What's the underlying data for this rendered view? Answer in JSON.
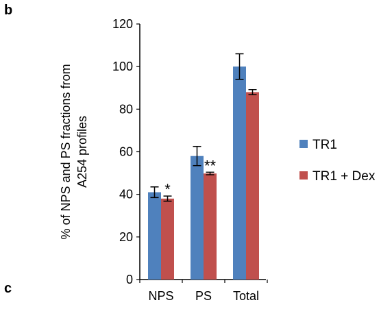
{
  "panel_labels": {
    "top": "b",
    "bottom": "c"
  },
  "chart_data": {
    "type": "bar",
    "title": "",
    "xlabel": "",
    "ylabel_lines": [
      "% of NPS and PS fractions from",
      "A254 profiles"
    ],
    "categories": [
      "NPS",
      "PS",
      "Total"
    ],
    "ylim": [
      0,
      120
    ],
    "yticks": [
      0,
      20,
      40,
      60,
      80,
      100,
      120
    ],
    "grid": false,
    "legend_position": "right",
    "series": [
      {
        "name": "TR1",
        "color": "#4F81BD",
        "values": [
          41,
          58,
          100
        ],
        "errors": [
          2.5,
          4.5,
          6
        ]
      },
      {
        "name": "TR1 + Dex",
        "color": "#C0504D",
        "values": [
          38,
          49.8,
          88
        ],
        "errors": [
          1.2,
          0.6,
          1.2
        ]
      }
    ],
    "annotations": [
      {
        "category": "NPS",
        "series": "TR1 + Dex",
        "text": "*"
      },
      {
        "category": "PS",
        "series": "TR1 + Dex",
        "text": "**"
      }
    ]
  }
}
